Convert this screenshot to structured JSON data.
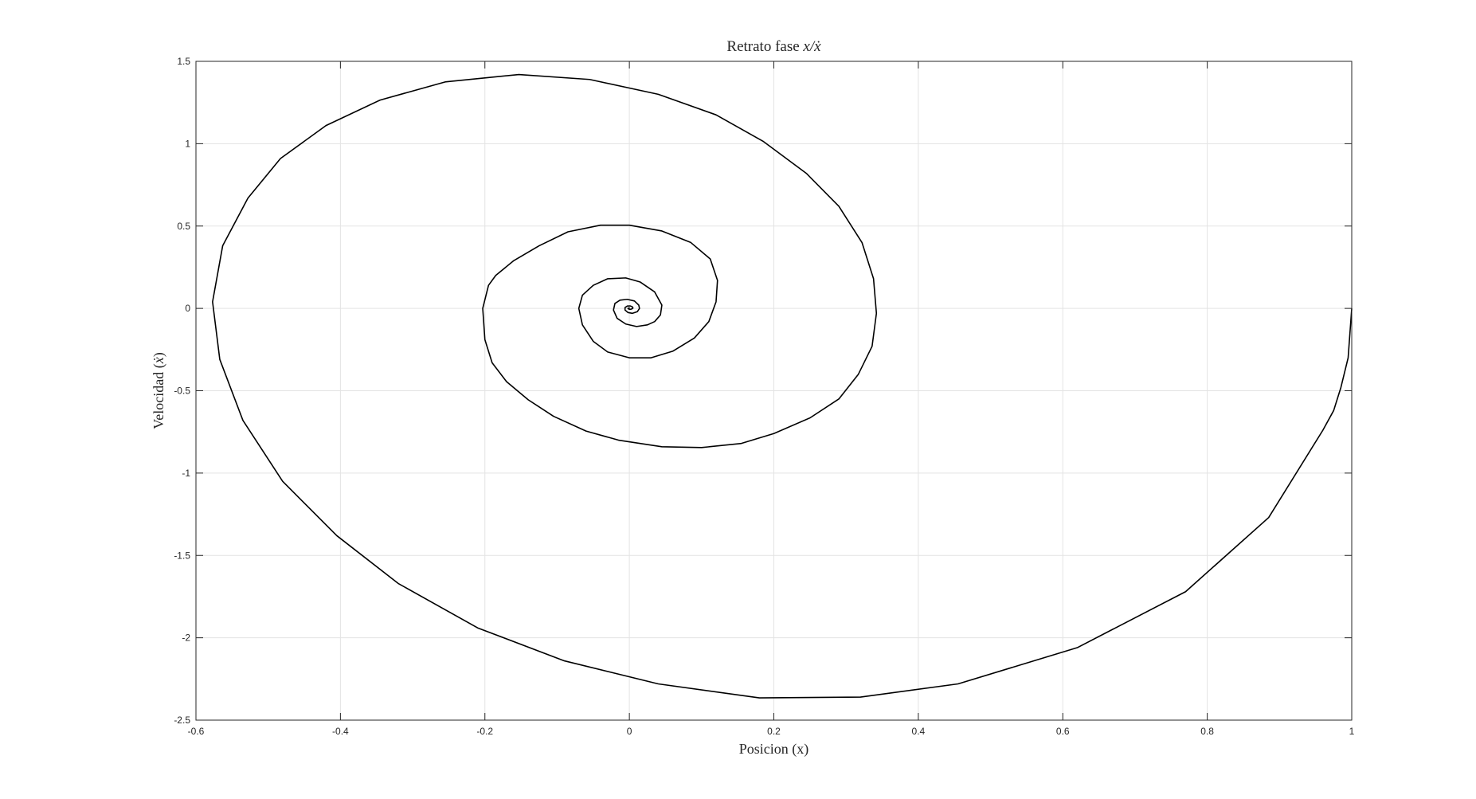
{
  "chart_data": {
    "type": "line",
    "title": "Retrato fase x/ẋ",
    "title_parts": {
      "prefix": "Retrato fase ",
      "math": "x/ẋ"
    },
    "xlabel": "Posicion (x)",
    "ylabel_parts": {
      "prefix": "Velocidad (",
      "math": "ẋ",
      "suffix": ")"
    },
    "xlim": [
      -0.6,
      1
    ],
    "ylim": [
      -2.5,
      1.5
    ],
    "xticks": [
      -0.6,
      -0.4,
      -0.2,
      0,
      0.2,
      0.4,
      0.6,
      0.8,
      1
    ],
    "yticks": [
      -2.5,
      -2,
      -1.5,
      -1,
      -0.5,
      0,
      0.5,
      1,
      1.5
    ],
    "xtick_labels": [
      "-0.6",
      "-0.4",
      "-0.2",
      "0",
      "0.2",
      "0.4",
      "0.6",
      "0.8",
      "1"
    ],
    "ytick_labels": [
      "-2.5",
      "-2",
      "-1.5",
      "-1",
      "-0.5",
      "0",
      "0.5",
      "1",
      "1.5"
    ],
    "grid": true,
    "series": [
      {
        "color": "#000000",
        "points": [
          [
            1.0,
            0.0
          ],
          [
            0.995,
            -0.3
          ],
          [
            0.985,
            -0.48
          ],
          [
            0.975,
            -0.62
          ],
          [
            0.96,
            -0.74
          ],
          [
            0.885,
            -1.27
          ],
          [
            0.77,
            -1.72
          ],
          [
            0.62,
            -2.06
          ],
          [
            0.455,
            -2.28
          ],
          [
            0.32,
            -2.36
          ],
          [
            0.18,
            -2.365
          ],
          [
            0.04,
            -2.28
          ],
          [
            -0.09,
            -2.14
          ],
          [
            -0.21,
            -1.94
          ],
          [
            -0.32,
            -1.67
          ],
          [
            -0.405,
            -1.38
          ],
          [
            -0.48,
            -1.05
          ],
          [
            -0.535,
            -0.68
          ],
          [
            -0.567,
            -0.31
          ],
          [
            -0.577,
            0.04
          ],
          [
            -0.563,
            0.38
          ],
          [
            -0.528,
            0.67
          ],
          [
            -0.483,
            0.91
          ],
          [
            -0.42,
            1.11
          ],
          [
            -0.345,
            1.265
          ],
          [
            -0.255,
            1.375
          ],
          [
            -0.153,
            1.42
          ],
          [
            -0.055,
            1.39
          ],
          [
            0.04,
            1.3
          ],
          [
            0.12,
            1.175
          ],
          [
            0.185,
            1.015
          ],
          [
            0.245,
            0.82
          ],
          [
            0.29,
            0.62
          ],
          [
            0.322,
            0.4
          ],
          [
            0.338,
            0.18
          ],
          [
            0.342,
            -0.03
          ],
          [
            0.336,
            -0.23
          ],
          [
            0.317,
            -0.4
          ],
          [
            0.29,
            -0.55
          ],
          [
            0.25,
            -0.665
          ],
          [
            0.2,
            -0.76
          ],
          [
            0.155,
            -0.82
          ],
          [
            0.1,
            -0.845
          ],
          [
            0.045,
            -0.84
          ],
          [
            -0.015,
            -0.8
          ],
          [
            -0.06,
            -0.745
          ],
          [
            -0.105,
            -0.655
          ],
          [
            -0.14,
            -0.555
          ],
          [
            -0.17,
            -0.445
          ],
          [
            -0.19,
            -0.33
          ],
          [
            -0.2,
            -0.19
          ],
          [
            -0.203,
            0.0
          ],
          [
            -0.195,
            0.14
          ],
          [
            -0.185,
            0.2
          ],
          [
            -0.16,
            0.29
          ],
          [
            -0.125,
            0.38
          ],
          [
            -0.085,
            0.465
          ],
          [
            -0.04,
            0.505
          ],
          [
            0.0,
            0.505
          ],
          [
            0.045,
            0.47
          ],
          [
            0.085,
            0.4
          ],
          [
            0.112,
            0.3
          ],
          [
            0.122,
            0.17
          ],
          [
            0.12,
            0.04
          ],
          [
            0.11,
            -0.08
          ],
          [
            0.09,
            -0.18
          ],
          [
            0.06,
            -0.26
          ],
          [
            0.03,
            -0.3
          ],
          [
            0.0,
            -0.3
          ],
          [
            -0.03,
            -0.265
          ],
          [
            -0.05,
            -0.2
          ],
          [
            -0.065,
            -0.1
          ],
          [
            -0.07,
            0.0
          ],
          [
            -0.065,
            0.08
          ],
          [
            -0.05,
            0.14
          ],
          [
            -0.03,
            0.18
          ],
          [
            -0.005,
            0.185
          ],
          [
            0.015,
            0.16
          ],
          [
            0.035,
            0.1
          ],
          [
            0.045,
            0.02
          ],
          [
            0.043,
            -0.04
          ],
          [
            0.035,
            -0.08
          ],
          [
            0.025,
            -0.1
          ],
          [
            0.01,
            -0.11
          ],
          [
            -0.005,
            -0.095
          ],
          [
            -0.017,
            -0.06
          ],
          [
            -0.022,
            -0.01
          ],
          [
            -0.02,
            0.03
          ],
          [
            -0.013,
            0.05
          ],
          [
            -0.003,
            0.055
          ],
          [
            0.007,
            0.045
          ],
          [
            0.013,
            0.02
          ],
          [
            0.014,
            0.0
          ],
          [
            0.011,
            -0.02
          ],
          [
            0.004,
            -0.03
          ],
          [
            -0.002,
            -0.025
          ],
          [
            -0.006,
            -0.01
          ],
          [
            -0.006,
            0.005
          ],
          [
            -0.003,
            0.014
          ],
          [
            0.001,
            0.015
          ],
          [
            0.004,
            0.01
          ],
          [
            0.005,
            0.002
          ],
          [
            0.003,
            -0.004
          ],
          [
            0.001,
            -0.006
          ],
          [
            -0.001,
            -0.004
          ],
          [
            -0.002,
            0.0
          ],
          [
            -0.001,
            0.002
          ],
          [
            0.0,
            0.002
          ],
          [
            0.0,
            0.0
          ]
        ]
      }
    ]
  }
}
